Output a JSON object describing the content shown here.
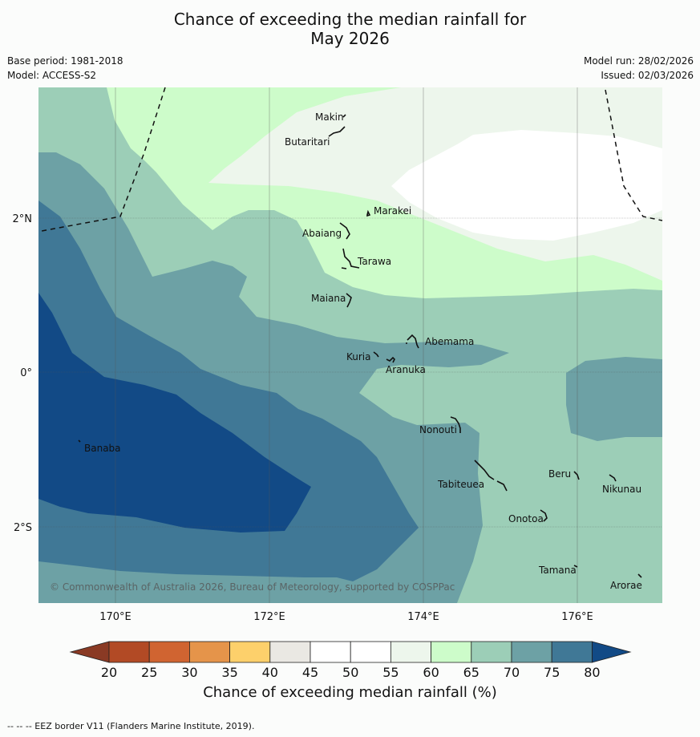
{
  "title_line1": "Chance of exceeding the median rainfall for",
  "title_line2": "May 2026",
  "base_period": "Base period: 1981-2018",
  "model": "Model: ACCESS-S2",
  "model_run": "Model run: 28/02/2026",
  "issued": "Issued: 02/03/2026",
  "copyright": "© Commonwealth of Australia 2026, Bureau of Meteorology, supported by COSPPac",
  "x_ticks": [
    "170°E",
    "172°E",
    "174°E",
    "176°E"
  ],
  "y_ticks": [
    "2°N",
    "0°",
    "2°S"
  ],
  "islands": {
    "makin": "Makin",
    "butaritari": "Butaritari",
    "marakei": "Marakei",
    "abaiang": "Abaiang",
    "tarawa": "Tarawa",
    "maiana": "Maiana",
    "abemama": "Abemama",
    "kuria": "Kuria",
    "aranuka": "Aranuka",
    "banaba": "Banaba",
    "nonouti": "Nonouti",
    "beru": "Beru",
    "nikunau": "Nikunau",
    "tabiteuea": "Tabiteuea",
    "onotoa": "Onotoa",
    "tamana": "Tamana",
    "arorae": "Arorae"
  },
  "colorbar": {
    "ticks": [
      "20",
      "25",
      "30",
      "35",
      "40",
      "45",
      "50",
      "55",
      "60",
      "65",
      "70",
      "75",
      "80"
    ],
    "colors": [
      "#b24a25",
      "#d06431",
      "#e5944a",
      "#fdd06b",
      "#eae8e3",
      "#ffffff",
      "#ffffff",
      "#edf6ec",
      "#cdfcca",
      "#9cceb7",
      "#6da1a5",
      "#407896"
    ],
    "under_color": "#8a3a24",
    "over_color": "#124a86",
    "title": "Chance of exceeding median rainfall (%)"
  },
  "palette": {
    "c60": "#cdfcca",
    "c55": "#edf6ec",
    "c50": "#ffffff",
    "c65": "#9cceb7",
    "c70": "#6da1a5",
    "c75": "#407896",
    "c80": "#124a86"
  },
  "footer": "--  --  -- EEZ border V11 (Flanders Marine Institute, 2019)."
}
